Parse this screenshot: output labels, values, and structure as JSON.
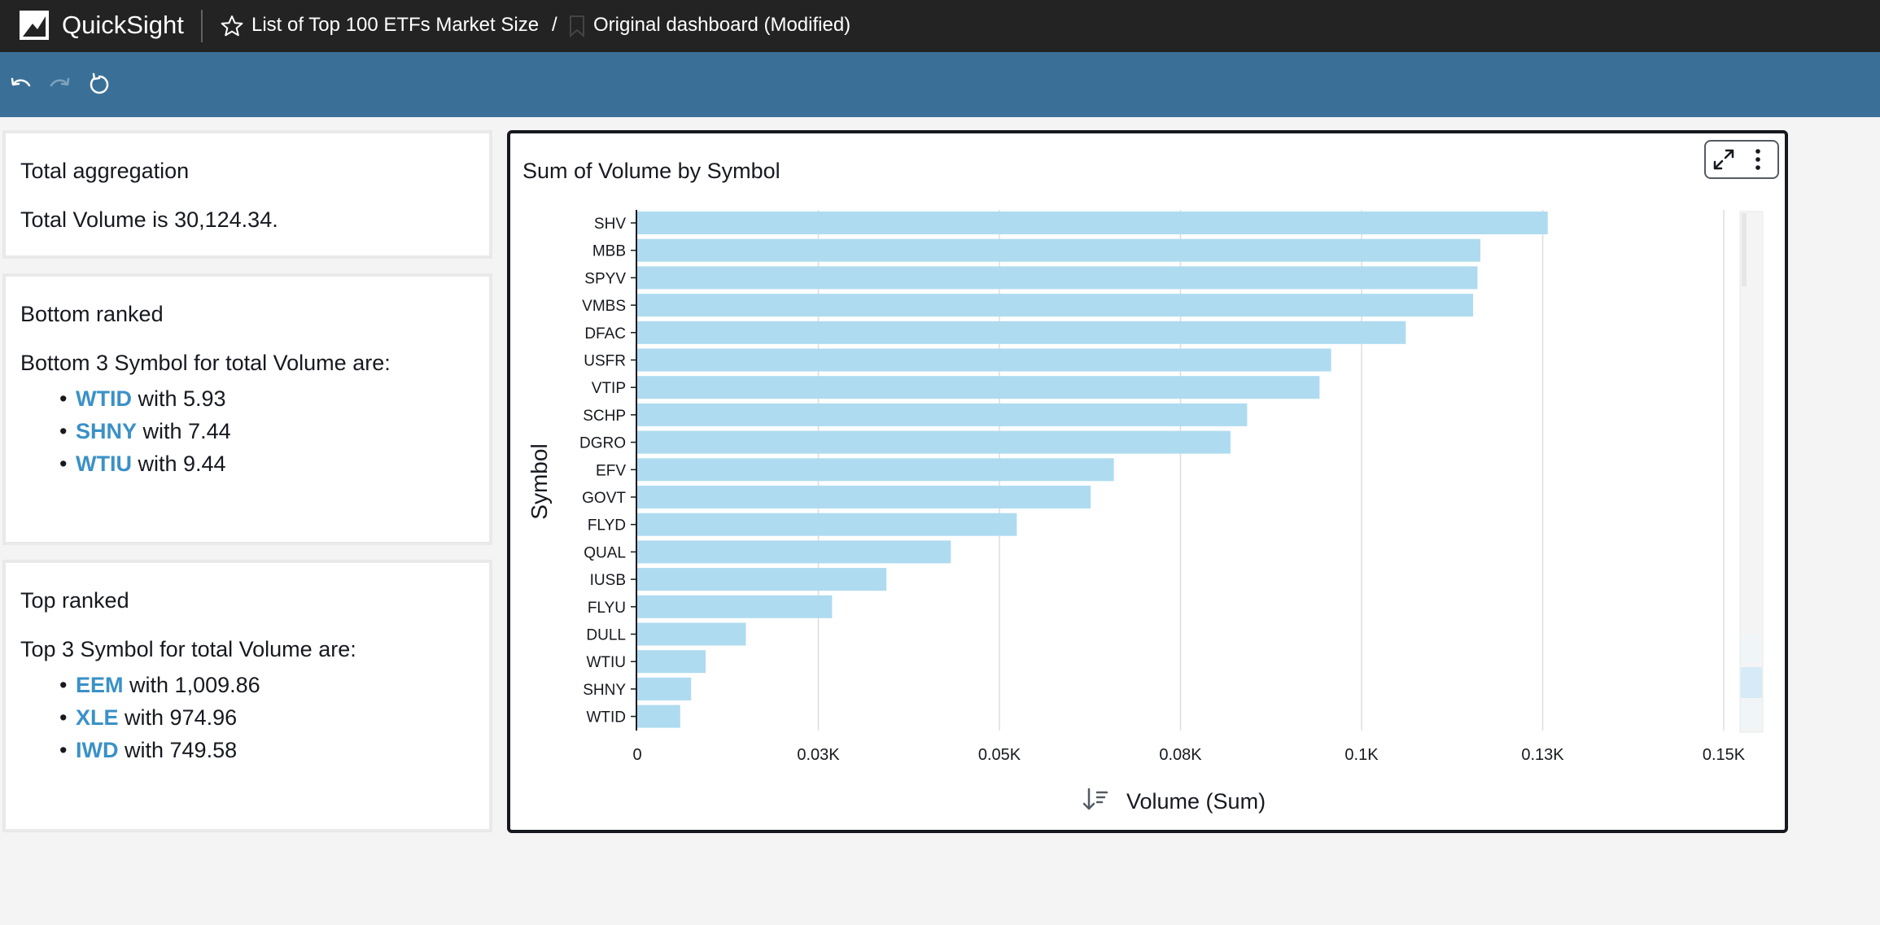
{
  "topbar": {
    "app_name": "QuickSight",
    "analysis_title": "List of Top 100 ETFs Market Size",
    "separator": "/",
    "sheet_title": "Original dashboard (Modified)"
  },
  "toolbar": {
    "buttons": [
      "undo-icon",
      "redo-icon",
      "reset-icon"
    ]
  },
  "cards": {
    "total": {
      "title": "Total aggregation",
      "text": "Total Volume is 30,124.34."
    },
    "bottom": {
      "title": "Bottom ranked",
      "text": "Bottom 3 Symbol for total Volume are:",
      "items": [
        {
          "symbol": "WTID",
          "rest": "with 5.93"
        },
        {
          "symbol": "SHNY",
          "rest": "with 7.44"
        },
        {
          "symbol": "WTIU",
          "rest": "with 9.44"
        }
      ]
    },
    "top": {
      "title": "Top ranked",
      "text": "Top 3 Symbol for total Volume are:",
      "items": [
        {
          "symbol": "EEM",
          "rest": "with 1,009.86"
        },
        {
          "symbol": "XLE",
          "rest": "with 974.96"
        },
        {
          "symbol": "IWD",
          "rest": "with 749.58"
        }
      ]
    }
  },
  "colors": {
    "accent_link": "#3a91c7",
    "bar": "#aedbf0",
    "topbar": "#232323",
    "toolbar": "#3a7097"
  },
  "chart_data": {
    "type": "bar",
    "orientation": "horizontal",
    "title": "Sum of Volume by Symbol",
    "xlabel": "Volume (Sum)",
    "ylabel": "Symbol",
    "categories": [
      "SHV",
      "MBB",
      "SPYV",
      "VMBS",
      "DFAC",
      "USFR",
      "VTIP",
      "SCHP",
      "DGRO",
      "EFV",
      "GOVT",
      "FLYD",
      "QUAL",
      "IUSB",
      "FLYU",
      "DULL",
      "WTIU",
      "SHNY",
      "WTID"
    ],
    "values": [
      125.7,
      116.4,
      116.0,
      115.4,
      106.1,
      95.8,
      94.2,
      84.2,
      81.9,
      65.8,
      62.6,
      52.4,
      43.3,
      34.4,
      26.9,
      15.0,
      9.44,
      7.44,
      5.93
    ],
    "xlim": [
      0,
      150
    ],
    "xticks": [
      "0",
      "0.03K",
      "0.05K",
      "0.08K",
      "0.1K",
      "0.13K",
      "0.15K"
    ],
    "grid": true
  }
}
